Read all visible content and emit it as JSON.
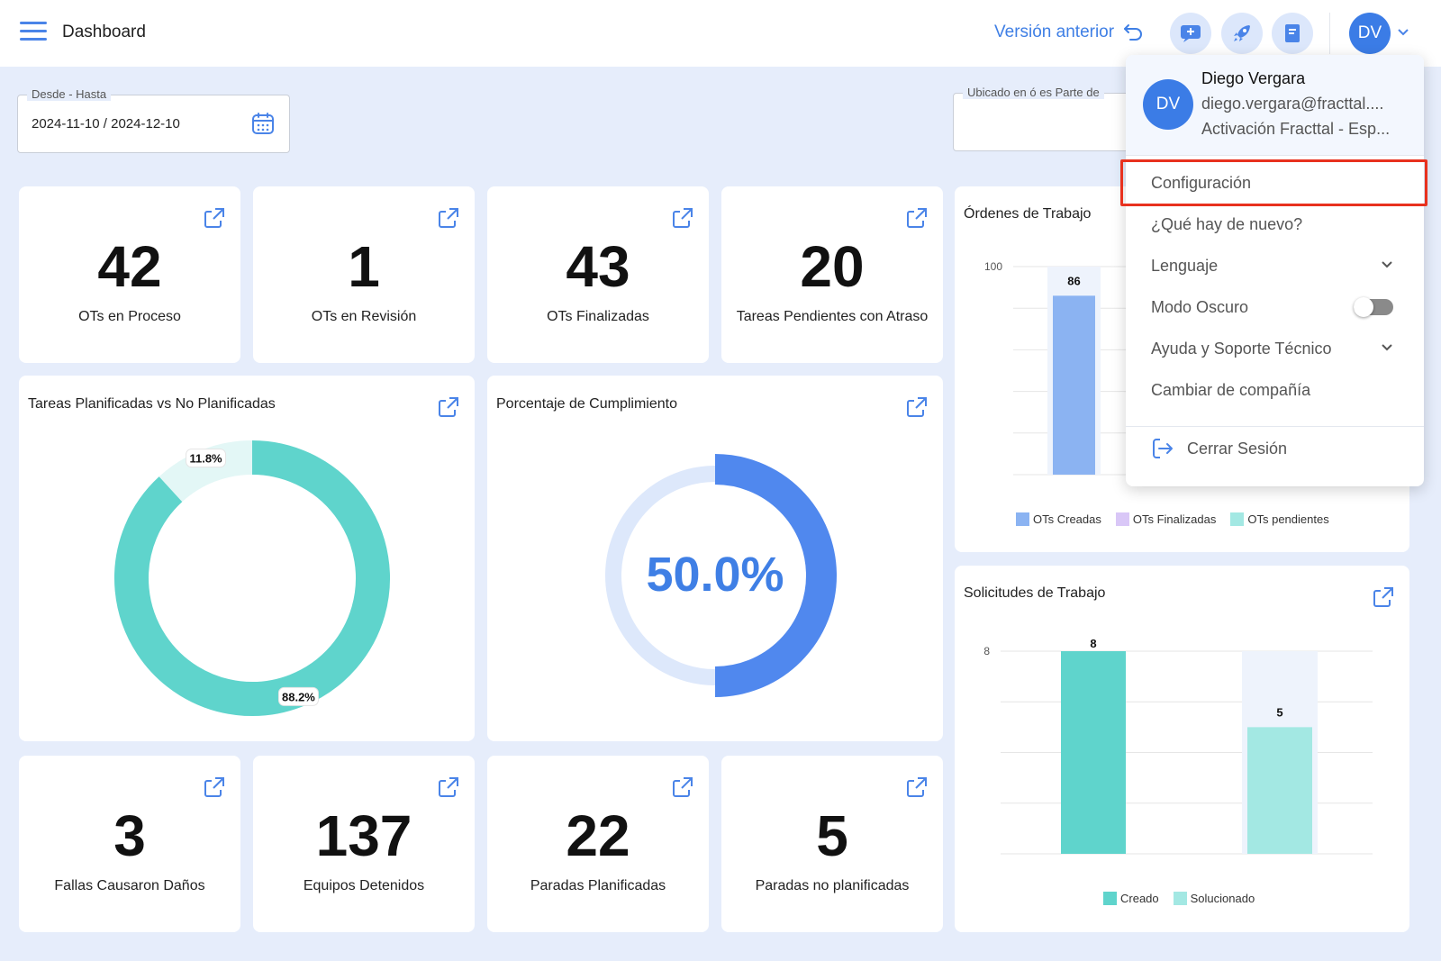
{
  "header": {
    "title": "Dashboard",
    "version_label": "Versión anterior",
    "avatar_initials": "DV",
    "icons": [
      "menu-icon",
      "chat-icon",
      "rocket-icon",
      "book-icon",
      "chevron-down-icon"
    ]
  },
  "filters": {
    "date_range": {
      "label": "Desde - Hasta",
      "value": "2024-11-10 / 2024-12-10"
    },
    "location": {
      "label": "Ubicado en ó es Parte de",
      "value": ""
    }
  },
  "kpis_top": [
    {
      "value": "42",
      "label": "OTs en Proceso"
    },
    {
      "value": "1",
      "label": "OTs en Revisión"
    },
    {
      "value": "43",
      "label": "OTs Finalizadas"
    },
    {
      "value": "20",
      "label": "Tareas Pendientes con Atraso"
    }
  ],
  "kpis_bottom": [
    {
      "value": "3",
      "label": "Fallas Causaron Daños"
    },
    {
      "value": "137",
      "label": "Equipos Detenidos"
    },
    {
      "value": "22",
      "label": "Paradas Planificadas"
    },
    {
      "value": "5",
      "label": "Paradas no planificadas"
    }
  ],
  "donut_card": {
    "title": "Tareas Planificadas vs No Planificadas"
  },
  "compliance_card": {
    "title": "Porcentaje de Cumplimiento",
    "value_label": "50.0%"
  },
  "orders_card": {
    "title": "Órdenes de Trabajo",
    "legend": [
      "OTs Creadas",
      "OTs Finalizadas",
      "OTs pendientes"
    ]
  },
  "requests_card": {
    "title": "Solicitudes de Trabajo",
    "legend": [
      "Creado",
      "Solucionado"
    ]
  },
  "colors": {
    "accent": "#3f7fe5",
    "teal": "#5fd4cc",
    "teal_light": "#a3e8e3",
    "donut_light": "#e3f7f6",
    "blue_bar": "#8bb3f2",
    "purple": "#d9c7f7",
    "highlight": "#e8311e"
  },
  "user_menu": {
    "avatar_initials": "DV",
    "name": "Diego Vergara",
    "email": "diego.vergara@fracttal....",
    "company": "Activación Fracttal - Esp...",
    "items": [
      "Configuración",
      "¿Qué hay de nuevo?",
      "Lenguaje",
      "Modo Oscuro",
      "Ayuda y Soporte Técnico",
      "Cambiar de compañía"
    ],
    "dark_mode_on": false,
    "logout": "Cerrar Sesión"
  },
  "chart_data": [
    {
      "type": "pie",
      "title": "Tareas Planificadas vs No Planificadas",
      "slices": [
        {
          "value": 88.2,
          "label": "88.2%",
          "color": "#5fd4cc"
        },
        {
          "value": 11.8,
          "label": "11.8%",
          "color": "#e3f7f6"
        }
      ]
    },
    {
      "type": "pie",
      "title": "Porcentaje de Cumplimiento",
      "slices": [
        {
          "value": 50.0,
          "color": "#5088ee"
        },
        {
          "value": 50.0,
          "color": "#dde8fb"
        }
      ],
      "center_label": "50.0%"
    },
    {
      "type": "bar",
      "title": "Órdenes de Trabajo",
      "series": [
        {
          "name": "OTs Creadas",
          "values": [
            86
          ],
          "color": "#8bb3f2"
        },
        {
          "name": "OTs Finalizadas",
          "values": [],
          "color": "#d9c7f7"
        },
        {
          "name": "OTs pendientes",
          "values": [],
          "color": "#a3e8e3"
        }
      ],
      "yticks": [
        "100"
      ],
      "ylim": [
        0,
        100
      ]
    },
    {
      "type": "bar",
      "title": "Solicitudes de Trabajo",
      "series": [
        {
          "name": "Creado",
          "values": [
            8
          ],
          "color": "#5fd4cc"
        },
        {
          "name": "Solucionado",
          "values": [
            5
          ],
          "color": "#a3e8e3"
        }
      ],
      "yticks": [
        "8"
      ],
      "ylim": [
        0,
        8
      ]
    }
  ]
}
